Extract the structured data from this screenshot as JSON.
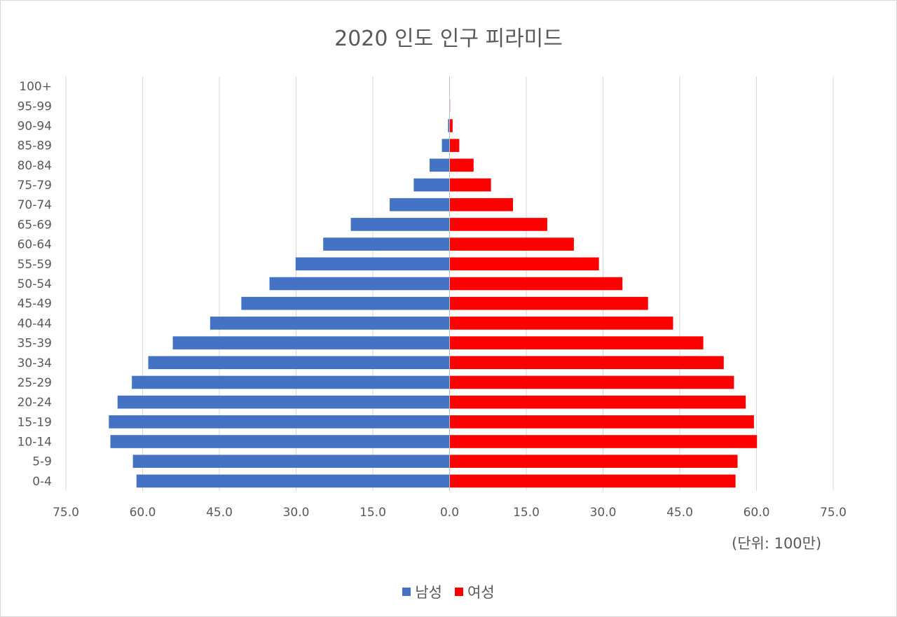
{
  "chart_data": {
    "type": "bar",
    "orientation": "horizontal",
    "title": "2020 인도 인구 피라미드",
    "unit_note": "(단위: 100만)",
    "categories": [
      "0-4",
      "5-9",
      "10-14",
      "15-19",
      "20-24",
      "25-29",
      "30-34",
      "35-39",
      "40-44",
      "45-49",
      "50-54",
      "55-59",
      "60-64",
      "65-69",
      "70-74",
      "75-79",
      "80-84",
      "85-89",
      "90-94",
      "95-99",
      "100+"
    ],
    "series": [
      {
        "name": "남성",
        "color": "#4472c4",
        "side": "left",
        "values": [
          61.2,
          61.9,
          66.3,
          66.6,
          64.9,
          62.1,
          58.9,
          54.1,
          46.8,
          40.7,
          35.2,
          30.1,
          24.7,
          19.3,
          11.7,
          7.0,
          3.9,
          1.5,
          0.3,
          0.05,
          0.0
        ]
      },
      {
        "name": "여성",
        "color": "#ff0000",
        "side": "right",
        "values": [
          55.9,
          56.3,
          60.1,
          59.5,
          57.9,
          55.6,
          53.6,
          49.6,
          43.7,
          38.8,
          33.8,
          29.2,
          24.3,
          19.1,
          12.4,
          8.1,
          4.7,
          1.9,
          0.6,
          0.1,
          0.0
        ]
      }
    ],
    "x_ticks": [
      "75.0",
      "60.0",
      "45.0",
      "30.0",
      "15.0",
      "0.0",
      "15.0",
      "30.0",
      "45.0",
      "60.0",
      "75.0"
    ],
    "xlim": [
      -75,
      75
    ],
    "grid": true,
    "legend": "bottom-center"
  }
}
